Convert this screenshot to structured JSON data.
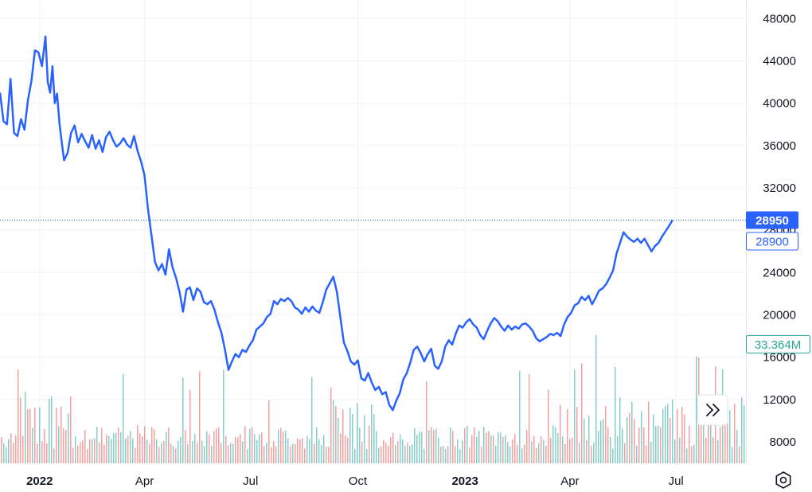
{
  "chart_data": {
    "type": "line",
    "title": "",
    "xlabel": "",
    "ylabel": "",
    "ylim": [
      6500,
      49000
    ],
    "grid": true,
    "y_ticks": [
      "48000",
      "44000",
      "40000",
      "36000",
      "32000",
      "28000",
      "24000",
      "20000",
      "16000",
      "12000",
      "8000"
    ],
    "x_ticks": [
      {
        "label": "2022",
        "bold": true
      },
      {
        "label": "Apr",
        "bold": false
      },
      {
        "label": "Jul",
        "bold": false
      },
      {
        "label": "Oct",
        "bold": false
      },
      {
        "label": "2023",
        "bold": true
      },
      {
        "label": "Apr",
        "bold": false
      },
      {
        "label": "Jul",
        "bold": false
      }
    ],
    "x_tick_dates": [
      "2022-01-01",
      "2022-04-01",
      "2022-07-01",
      "2022-10-01",
      "2023-01-01",
      "2023-04-01",
      "2023-07-01"
    ],
    "x_range": [
      "2021-11-28",
      "2023-08-30"
    ],
    "series": [
      {
        "color": "#2962ff",
        "points": [
          [
            "2021-11-28",
            41000
          ],
          [
            "2021-12-01",
            38300
          ],
          [
            "2021-12-04",
            38000
          ],
          [
            "2021-12-07",
            42300
          ],
          [
            "2021-12-10",
            37200
          ],
          [
            "2021-12-13",
            36900
          ],
          [
            "2021-12-16",
            38500
          ],
          [
            "2021-12-19",
            37500
          ],
          [
            "2021-12-22",
            40300
          ],
          [
            "2021-12-25",
            42100
          ],
          [
            "2021-12-28",
            45000
          ],
          [
            "2021-12-31",
            44800
          ],
          [
            "2022-01-03",
            43500
          ],
          [
            "2022-01-06",
            46300
          ],
          [
            "2022-01-08",
            42000
          ],
          [
            "2022-01-10",
            41000
          ],
          [
            "2022-01-12",
            43500
          ],
          [
            "2022-01-14",
            40000
          ],
          [
            "2022-01-16",
            40900
          ],
          [
            "2022-01-18",
            38100
          ],
          [
            "2022-01-20",
            36300
          ],
          [
            "2022-01-22",
            34600
          ],
          [
            "2022-01-25",
            35300
          ],
          [
            "2022-01-28",
            37200
          ],
          [
            "2022-01-31",
            37900
          ],
          [
            "2022-02-03",
            36300
          ],
          [
            "2022-02-06",
            37100
          ],
          [
            "2022-02-09",
            36400
          ],
          [
            "2022-02-12",
            35800
          ],
          [
            "2022-02-15",
            37000
          ],
          [
            "2022-02-18",
            35700
          ],
          [
            "2022-02-21",
            36500
          ],
          [
            "2022-02-24",
            35400
          ],
          [
            "2022-02-27",
            36800
          ],
          [
            "2022-03-02",
            37300
          ],
          [
            "2022-03-05",
            36500
          ],
          [
            "2022-03-08",
            35900
          ],
          [
            "2022-03-11",
            36200
          ],
          [
            "2022-03-14",
            36700
          ],
          [
            "2022-03-17",
            36100
          ],
          [
            "2022-03-20",
            35800
          ],
          [
            "2022-03-23",
            36900
          ],
          [
            "2022-03-26",
            35500
          ],
          [
            "2022-03-29",
            34500
          ],
          [
            "2022-04-01",
            33200
          ],
          [
            "2022-04-04",
            30000
          ],
          [
            "2022-04-07",
            27500
          ],
          [
            "2022-04-10",
            25000
          ],
          [
            "2022-04-13",
            24200
          ],
          [
            "2022-04-16",
            24800
          ],
          [
            "2022-04-19",
            23800
          ],
          [
            "2022-04-22",
            26200
          ],
          [
            "2022-04-25",
            24500
          ],
          [
            "2022-04-28",
            23500
          ],
          [
            "2022-05-01",
            22200
          ],
          [
            "2022-05-04",
            20300
          ],
          [
            "2022-05-07",
            22400
          ],
          [
            "2022-05-10",
            22600
          ],
          [
            "2022-05-13",
            21400
          ],
          [
            "2022-05-16",
            22500
          ],
          [
            "2022-05-19",
            22200
          ],
          [
            "2022-05-22",
            21200
          ],
          [
            "2022-05-25",
            21000
          ],
          [
            "2022-05-28",
            21300
          ],
          [
            "2022-05-31",
            20500
          ],
          [
            "2022-06-03",
            19300
          ],
          [
            "2022-06-06",
            18300
          ],
          [
            "2022-06-09",
            16700
          ],
          [
            "2022-06-12",
            14800
          ],
          [
            "2022-06-15",
            15600
          ],
          [
            "2022-06-18",
            16300
          ],
          [
            "2022-06-21",
            16000
          ],
          [
            "2022-06-24",
            16700
          ],
          [
            "2022-06-27",
            16500
          ],
          [
            "2022-06-30",
            17100
          ],
          [
            "2022-07-03",
            17600
          ],
          [
            "2022-07-06",
            18600
          ],
          [
            "2022-07-09",
            18900
          ],
          [
            "2022-07-12",
            19200
          ],
          [
            "2022-07-15",
            19800
          ],
          [
            "2022-07-18",
            20100
          ],
          [
            "2022-07-21",
            21300
          ],
          [
            "2022-07-24",
            21000
          ],
          [
            "2022-07-27",
            21500
          ],
          [
            "2022-07-30",
            21300
          ],
          [
            "2022-08-02",
            21600
          ],
          [
            "2022-08-05",
            21300
          ],
          [
            "2022-08-08",
            20700
          ],
          [
            "2022-08-11",
            20500
          ],
          [
            "2022-08-14",
            20100
          ],
          [
            "2022-08-17",
            20700
          ],
          [
            "2022-08-20",
            20300
          ],
          [
            "2022-08-23",
            20800
          ],
          [
            "2022-08-26",
            20400
          ],
          [
            "2022-08-29",
            20200
          ],
          [
            "2022-09-01",
            21200
          ],
          [
            "2022-09-04",
            22400
          ],
          [
            "2022-09-07",
            23000
          ],
          [
            "2022-09-10",
            23600
          ],
          [
            "2022-09-13",
            22200
          ],
          [
            "2022-09-16",
            19800
          ],
          [
            "2022-09-19",
            17400
          ],
          [
            "2022-09-22",
            16600
          ],
          [
            "2022-09-25",
            15600
          ],
          [
            "2022-09-28",
            15300
          ],
          [
            "2022-10-01",
            15700
          ],
          [
            "2022-10-04",
            14000
          ],
          [
            "2022-10-07",
            13800
          ],
          [
            "2022-10-10",
            14500
          ],
          [
            "2022-10-13",
            13600
          ],
          [
            "2022-10-16",
            12900
          ],
          [
            "2022-10-19",
            13200
          ],
          [
            "2022-10-22",
            12500
          ],
          [
            "2022-10-25",
            12700
          ],
          [
            "2022-10-28",
            11500
          ],
          [
            "2022-10-31",
            11000
          ],
          [
            "2022-11-03",
            11900
          ],
          [
            "2022-11-06",
            12600
          ],
          [
            "2022-11-09",
            13900
          ],
          [
            "2022-11-12",
            14500
          ],
          [
            "2022-11-15",
            15500
          ],
          [
            "2022-11-18",
            16700
          ],
          [
            "2022-11-21",
            17000
          ],
          [
            "2022-11-24",
            16400
          ],
          [
            "2022-11-27",
            15600
          ],
          [
            "2022-11-30",
            16300
          ],
          [
            "2022-12-03",
            16800
          ],
          [
            "2022-12-06",
            15200
          ],
          [
            "2022-12-09",
            14900
          ],
          [
            "2022-12-12",
            15600
          ],
          [
            "2022-12-15",
            17000
          ],
          [
            "2022-12-18",
            17600
          ],
          [
            "2022-12-21",
            17200
          ],
          [
            "2022-12-24",
            18200
          ],
          [
            "2022-12-27",
            19000
          ],
          [
            "2022-12-30",
            18800
          ],
          [
            "2023-01-02",
            19300
          ],
          [
            "2023-01-05",
            19600
          ],
          [
            "2023-01-08",
            19100
          ],
          [
            "2023-01-11",
            18800
          ],
          [
            "2023-01-14",
            18100
          ],
          [
            "2023-01-17",
            17700
          ],
          [
            "2023-01-20",
            18500
          ],
          [
            "2023-01-23",
            19200
          ],
          [
            "2023-01-26",
            19700
          ],
          [
            "2023-01-29",
            19400
          ],
          [
            "2023-02-01",
            18900
          ],
          [
            "2023-02-04",
            18500
          ],
          [
            "2023-02-07",
            19000
          ],
          [
            "2023-02-10",
            18600
          ],
          [
            "2023-02-13",
            18900
          ],
          [
            "2023-02-16",
            18700
          ],
          [
            "2023-02-19",
            19100
          ],
          [
            "2023-02-22",
            19200
          ],
          [
            "2023-02-25",
            18900
          ],
          [
            "2023-02-28",
            18500
          ],
          [
            "2023-03-03",
            17800
          ],
          [
            "2023-03-06",
            17500
          ],
          [
            "2023-03-09",
            17700
          ],
          [
            "2023-03-12",
            17900
          ],
          [
            "2023-03-15",
            18200
          ],
          [
            "2023-03-18",
            18100
          ],
          [
            "2023-03-21",
            18300
          ],
          [
            "2023-03-24",
            18000
          ],
          [
            "2023-03-27",
            19100
          ],
          [
            "2023-03-30",
            19800
          ],
          [
            "2023-04-02",
            20200
          ],
          [
            "2023-04-05",
            20900
          ],
          [
            "2023-04-08",
            21100
          ],
          [
            "2023-04-11",
            21700
          ],
          [
            "2023-04-14",
            21400
          ],
          [
            "2023-04-17",
            21800
          ],
          [
            "2023-04-20",
            21000
          ],
          [
            "2023-04-23",
            21600
          ],
          [
            "2023-04-26",
            22300
          ],
          [
            "2023-04-29",
            22500
          ],
          [
            "2023-05-02",
            22900
          ],
          [
            "2023-05-05",
            23500
          ],
          [
            "2023-05-08",
            24200
          ],
          [
            "2023-05-11",
            25800
          ],
          [
            "2023-05-14",
            26800
          ],
          [
            "2023-05-17",
            27800
          ],
          [
            "2023-05-20",
            27400
          ],
          [
            "2023-05-23",
            27100
          ],
          [
            "2023-05-26",
            26900
          ],
          [
            "2023-05-29",
            27200
          ],
          [
            "2023-06-01",
            26800
          ],
          [
            "2023-06-04",
            27200
          ],
          [
            "2023-06-07",
            26600
          ],
          [
            "2023-06-10",
            26000
          ],
          [
            "2023-06-13",
            26500
          ],
          [
            "2023-06-16",
            26800
          ],
          [
            "2023-06-19",
            27400
          ],
          [
            "2023-06-22",
            27900
          ],
          [
            "2023-06-25",
            28400
          ],
          [
            "2023-06-28",
            28950
          ]
        ]
      }
    ],
    "last_price_label": "28950",
    "last_price_value": 28950,
    "second_price_label": "28900",
    "volume_label": "33.364M",
    "volume_label_value": 17000,
    "colors": {
      "line": "#2962ff",
      "volume_up": "#26a69a",
      "volume_down": "#ef5350",
      "grid": "#f0f3fa",
      "badge_text_alt": "#26a69a"
    }
  },
  "ui": {
    "scroll_right_icon": "chevrons-right-icon",
    "settings_icon": "gear-icon"
  }
}
